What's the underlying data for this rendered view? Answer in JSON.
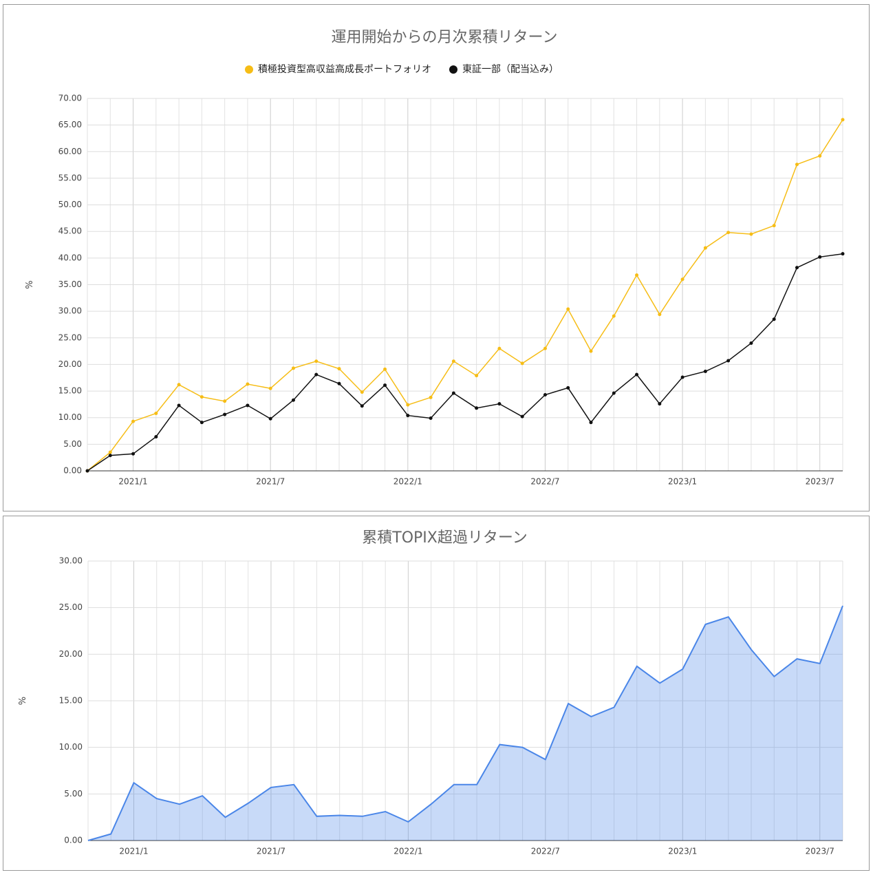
{
  "chart_data": [
    {
      "type": "line",
      "title": "運用開始からの月次累積リターン",
      "y_label": "%",
      "categories": [
        null,
        null,
        "2021/1",
        null,
        null,
        null,
        null,
        null,
        "2021/7",
        null,
        null,
        null,
        null,
        null,
        "2022/1",
        null,
        null,
        null,
        null,
        null,
        "2022/7",
        null,
        null,
        null,
        null,
        null,
        "2023/1",
        null,
        null,
        null,
        null,
        null,
        "2023/7",
        null
      ],
      "series": [
        {
          "name": "積極投資型高収益高成長ポートフォリオ",
          "color": "#f6bd16",
          "values": [
            0,
            3.5,
            9.3,
            10.8,
            16.2,
            13.9,
            13.1,
            16.3,
            15.5,
            19.3,
            20.6,
            19.2,
            14.8,
            19.1,
            12.4,
            13.8,
            20.6,
            17.9,
            23.0,
            20.2,
            23.0,
            30.4,
            22.5,
            29.1,
            36.8,
            29.4,
            36.0,
            41.9,
            44.8,
            44.5,
            46.1,
            57.6,
            59.2,
            66.0
          ]
        },
        {
          "name": "東証一部（配当込み）",
          "color": "#111111",
          "values": [
            0,
            2.9,
            3.2,
            6.4,
            12.3,
            9.1,
            10.6,
            12.3,
            9.8,
            13.3,
            18.1,
            16.4,
            12.2,
            16.1,
            10.4,
            9.9,
            14.6,
            11.8,
            12.6,
            10.2,
            14.3,
            15.6,
            9.1,
            14.6,
            18.1,
            12.6,
            17.6,
            18.7,
            20.7,
            24.0,
            28.5,
            38.2,
            40.2,
            40.8
          ]
        }
      ],
      "ylim": [
        0,
        70
      ],
      "yticks": [
        {
          "value": 0,
          "label": "0.00"
        },
        {
          "value": 5,
          "label": "5.00"
        },
        {
          "value": 10,
          "label": "10.00"
        },
        {
          "value": 15,
          "label": "15.00"
        },
        {
          "value": 20,
          "label": "20.00"
        },
        {
          "value": 25,
          "label": "25.00"
        },
        {
          "value": 30,
          "label": "30.00"
        },
        {
          "value": 35,
          "label": "35.00"
        },
        {
          "value": 40,
          "label": "40.00"
        },
        {
          "value": 45,
          "label": "45.00"
        },
        {
          "value": 50,
          "label": "50.00"
        },
        {
          "value": 55,
          "label": "55.00"
        },
        {
          "value": 60,
          "label": "60.00"
        },
        {
          "value": 65,
          "label": "65.00"
        },
        {
          "value": 70,
          "label": "70.00"
        }
      ],
      "grid": true,
      "legend": "top"
    },
    {
      "type": "area",
      "title": "累積TOPIX超過リターン",
      "y_label": "%",
      "categories": [
        null,
        null,
        "2021/1",
        null,
        null,
        null,
        null,
        null,
        "2021/7",
        null,
        null,
        null,
        null,
        null,
        "2022/1",
        null,
        null,
        null,
        null,
        null,
        "2022/7",
        null,
        null,
        null,
        null,
        null,
        "2023/1",
        null,
        null,
        null,
        null,
        null,
        "2023/7",
        null
      ],
      "color": "#4a86e8",
      "values": [
        0,
        0.7,
        6.2,
        4.5,
        3.9,
        4.8,
        2.5,
        4.0,
        5.7,
        6.0,
        2.6,
        2.7,
        2.6,
        3.1,
        2.0,
        3.9,
        6.0,
        6.0,
        10.3,
        10.0,
        8.7,
        14.7,
        13.3,
        14.3,
        18.7,
        16.9,
        18.4,
        23.2,
        24.0,
        20.5,
        17.6,
        19.5,
        19.0,
        25.2
      ],
      "ylim": [
        0,
        30
      ],
      "yticks": [
        {
          "value": 0,
          "label": "0.00"
        },
        {
          "value": 5,
          "label": "5.00"
        },
        {
          "value": 10,
          "label": "10.00"
        },
        {
          "value": 15,
          "label": "15.00"
        },
        {
          "value": 20,
          "label": "20.00"
        },
        {
          "value": 25,
          "label": "25.00"
        },
        {
          "value": 30,
          "label": "30.00"
        }
      ],
      "grid": true
    }
  ]
}
